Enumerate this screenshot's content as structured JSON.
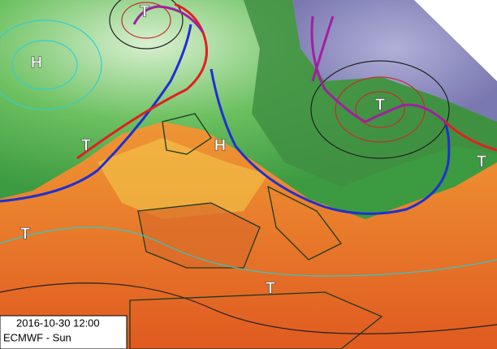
{
  "pressure_labels": [
    {
      "text": "T"
    },
    {
      "text": "H"
    },
    {
      "text": "T"
    },
    {
      "text": "H"
    },
    {
      "text": "T"
    },
    {
      "text": "T"
    },
    {
      "text": "T"
    },
    {
      "text": "T"
    }
  ],
  "info": {
    "datetime": "2016-10-30 12:00",
    "model": "ECMWF - Sun"
  }
}
